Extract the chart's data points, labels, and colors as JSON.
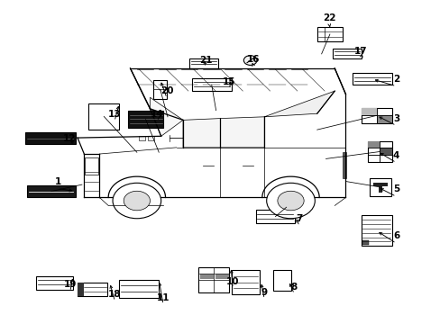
{
  "background_color": "#ffffff",
  "figsize": [
    4.89,
    3.6
  ],
  "dpi": 100,
  "label_items": [
    {
      "num": "1",
      "bx": 0.06,
      "by": 0.39,
      "bw": 0.11,
      "bh": 0.038,
      "style": "hbar_dark"
    },
    {
      "num": "2",
      "bx": 0.8,
      "by": 0.74,
      "bw": 0.09,
      "bh": 0.035,
      "style": "hbar_lines3"
    },
    {
      "num": "3",
      "bx": 0.82,
      "by": 0.62,
      "bw": 0.07,
      "bh": 0.048,
      "style": "grid2x2"
    },
    {
      "num": "4",
      "bx": 0.835,
      "by": 0.5,
      "bw": 0.055,
      "bh": 0.065,
      "style": "small_grid2"
    },
    {
      "num": "5",
      "bx": 0.84,
      "by": 0.395,
      "bw": 0.048,
      "bh": 0.055,
      "style": "T_box"
    },
    {
      "num": "6",
      "bx": 0.82,
      "by": 0.24,
      "bw": 0.07,
      "bh": 0.095,
      "style": "vlines"
    },
    {
      "num": "7",
      "bx": 0.58,
      "by": 0.31,
      "bw": 0.09,
      "bh": 0.042,
      "style": "hbar_lines3"
    },
    {
      "num": "8",
      "bx": 0.62,
      "by": 0.1,
      "bw": 0.04,
      "bh": 0.065,
      "style": "rect_outline"
    },
    {
      "num": "9",
      "bx": 0.525,
      "by": 0.09,
      "bw": 0.065,
      "bh": 0.075,
      "style": "hlines_box"
    },
    {
      "num": "10",
      "bx": 0.45,
      "by": 0.095,
      "bw": 0.07,
      "bh": 0.08,
      "style": "complex2"
    },
    {
      "num": "11",
      "bx": 0.27,
      "by": 0.08,
      "bw": 0.09,
      "bh": 0.055,
      "style": "hbar_lines3"
    },
    {
      "num": "12",
      "bx": 0.055,
      "by": 0.555,
      "bw": 0.115,
      "bh": 0.038,
      "style": "hbar_dark2"
    },
    {
      "num": "13",
      "bx": 0.2,
      "by": 0.6,
      "bw": 0.07,
      "bh": 0.082,
      "style": "rect_outline"
    },
    {
      "num": "14",
      "bx": 0.29,
      "by": 0.605,
      "bw": 0.08,
      "bh": 0.055,
      "style": "hbar_dark3"
    },
    {
      "num": "15",
      "bx": 0.435,
      "by": 0.72,
      "bw": 0.09,
      "bh": 0.038,
      "style": "hlines_box2"
    },
    {
      "num": "16",
      "bx": 0.553,
      "by": 0.8,
      "bw": 0.03,
      "bh": 0.03,
      "style": "circle_no"
    },
    {
      "num": "17",
      "bx": 0.755,
      "by": 0.82,
      "bw": 0.065,
      "bh": 0.032,
      "style": "hlines_box2"
    },
    {
      "num": "18",
      "bx": 0.175,
      "by": 0.085,
      "bw": 0.068,
      "bh": 0.042,
      "style": "small_hlines"
    },
    {
      "num": "19",
      "bx": 0.08,
      "by": 0.105,
      "bw": 0.085,
      "bh": 0.042,
      "style": "hlines_box2"
    },
    {
      "num": "20",
      "bx": 0.348,
      "by": 0.695,
      "bw": 0.03,
      "bh": 0.06,
      "style": "vbar_item"
    },
    {
      "num": "21",
      "bx": 0.43,
      "by": 0.79,
      "bw": 0.065,
      "bh": 0.032,
      "style": "hlines_box2"
    },
    {
      "num": "22",
      "bx": 0.72,
      "by": 0.875,
      "bw": 0.058,
      "bh": 0.042,
      "style": "hlines_box3"
    }
  ],
  "number_positions": [
    {
      "num": "1",
      "nx": 0.13,
      "ny": 0.44
    },
    {
      "num": "2",
      "nx": 0.9,
      "ny": 0.757
    },
    {
      "num": "3",
      "nx": 0.9,
      "ny": 0.635
    },
    {
      "num": "4",
      "nx": 0.9,
      "ny": 0.52
    },
    {
      "num": "5",
      "nx": 0.9,
      "ny": 0.415
    },
    {
      "num": "6",
      "nx": 0.9,
      "ny": 0.27
    },
    {
      "num": "7",
      "nx": 0.68,
      "ny": 0.323
    },
    {
      "num": "8",
      "nx": 0.668,
      "ny": 0.113
    },
    {
      "num": "9",
      "nx": 0.6,
      "ny": 0.097
    },
    {
      "num": "10",
      "nx": 0.528,
      "ny": 0.13
    },
    {
      "num": "11",
      "nx": 0.37,
      "ny": 0.08
    },
    {
      "num": "12",
      "nx": 0.157,
      "ny": 0.573
    },
    {
      "num": "13",
      "nx": 0.259,
      "ny": 0.648
    },
    {
      "num": "14",
      "nx": 0.355,
      "ny": 0.648
    },
    {
      "num": "15",
      "nx": 0.52,
      "ny": 0.748
    },
    {
      "num": "16",
      "nx": 0.576,
      "ny": 0.817
    },
    {
      "num": "17",
      "nx": 0.82,
      "ny": 0.843
    },
    {
      "num": "18",
      "nx": 0.26,
      "ny": 0.09
    },
    {
      "num": "19",
      "nx": 0.158,
      "ny": 0.12
    },
    {
      "num": "20",
      "nx": 0.378,
      "ny": 0.72
    },
    {
      "num": "21",
      "nx": 0.466,
      "ny": 0.815
    },
    {
      "num": "22",
      "nx": 0.748,
      "ny": 0.947
    }
  ],
  "vehicle_color": "#000000",
  "vehicle_lw": 0.9
}
